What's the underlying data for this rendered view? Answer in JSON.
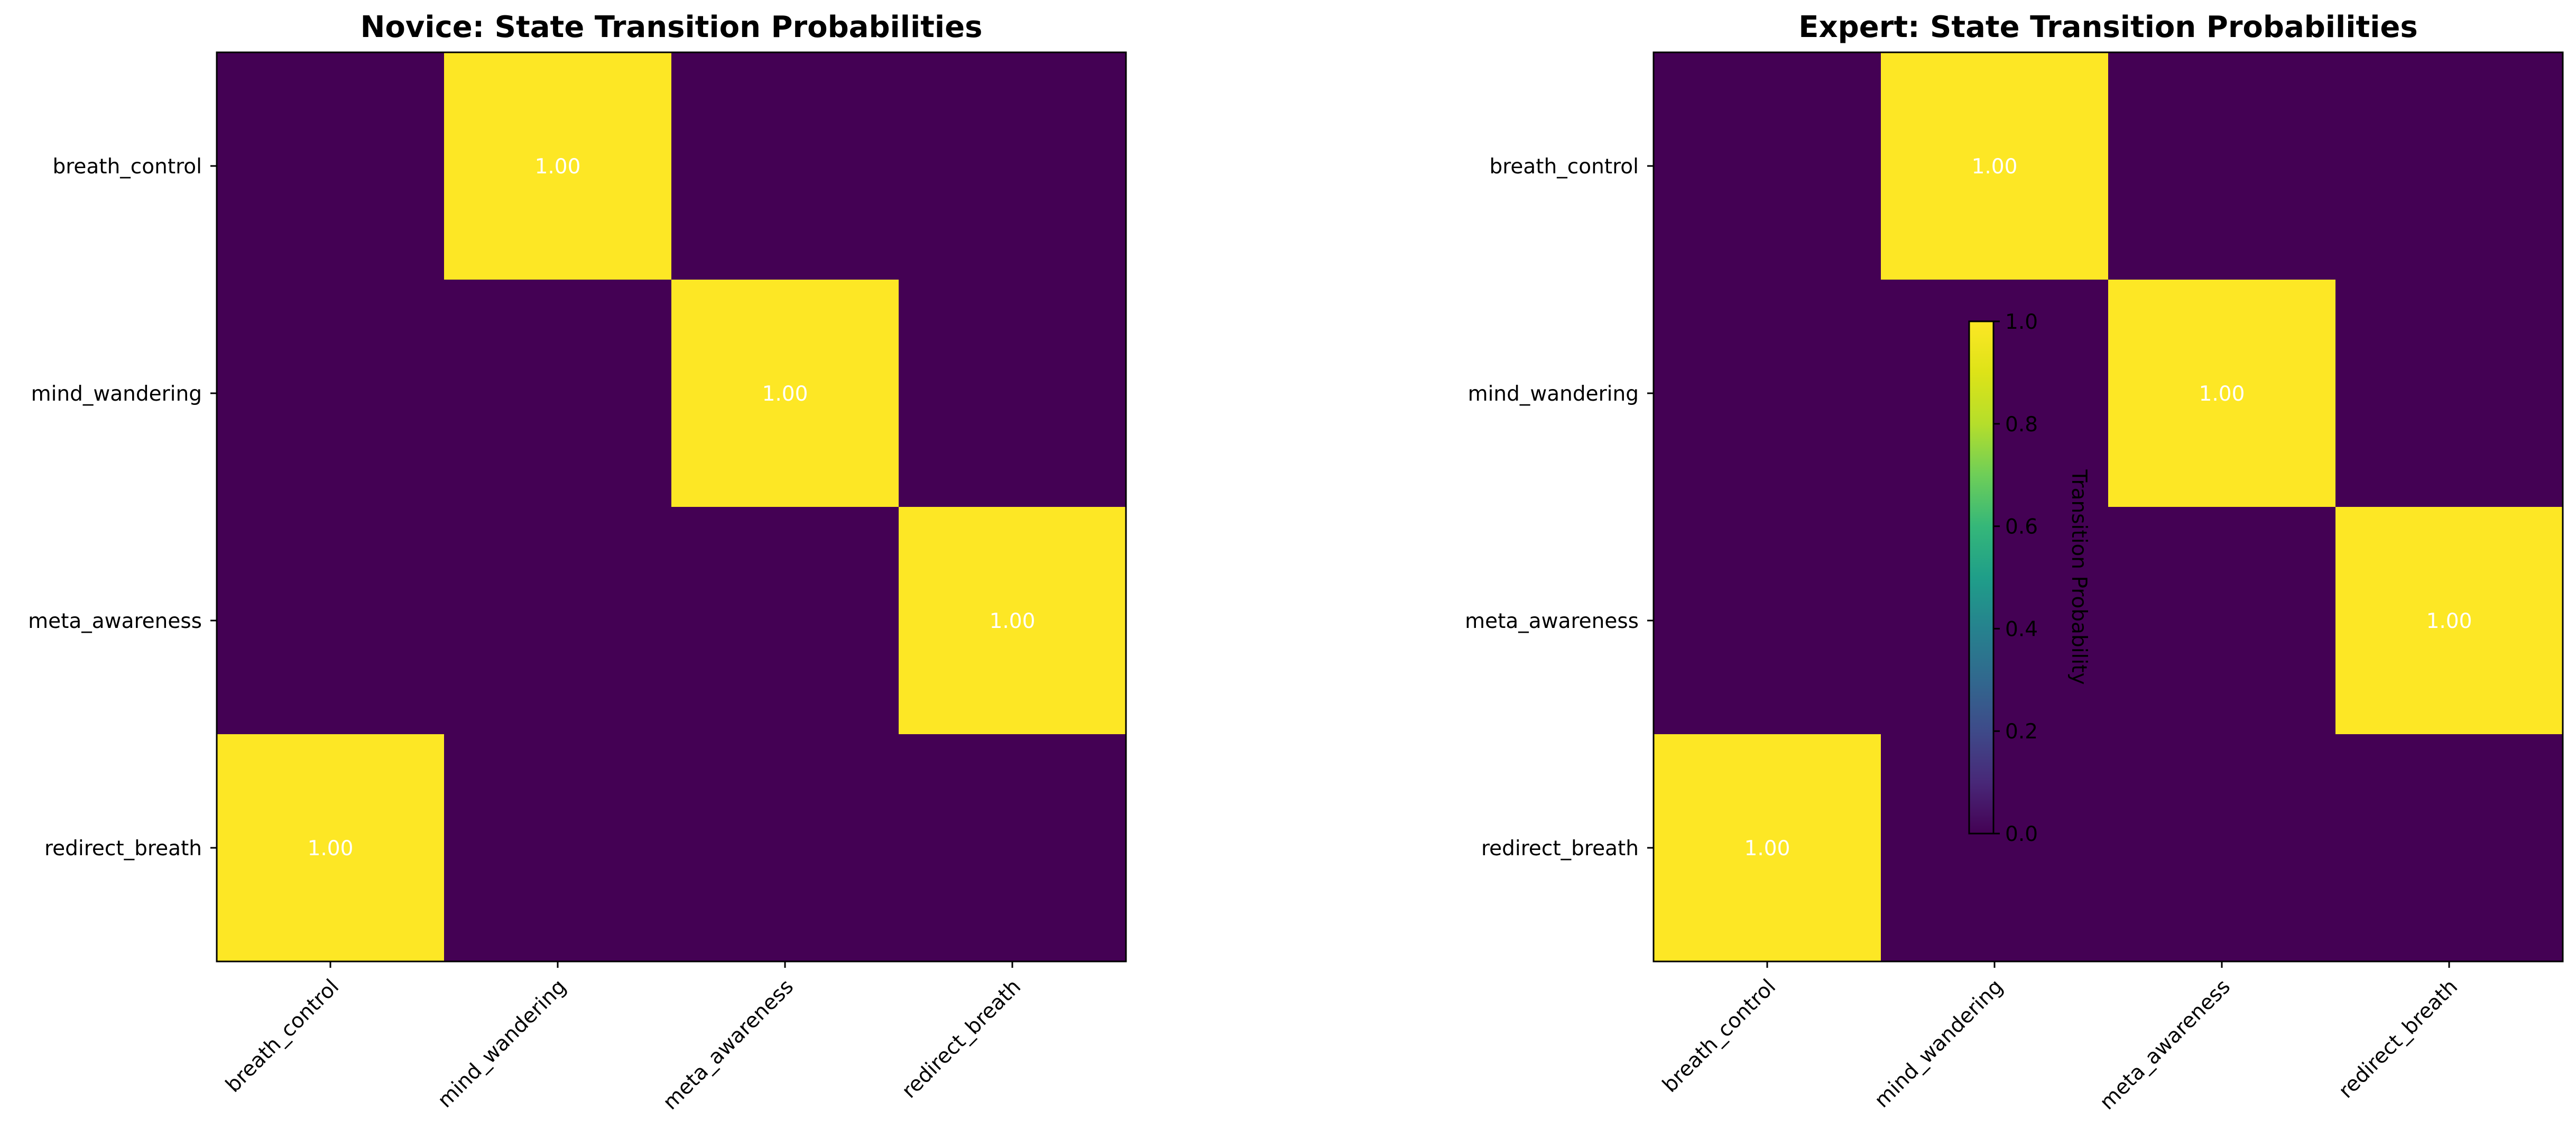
{
  "chart_data": [
    {
      "type": "heatmap",
      "title": "Novice: State Transition Probabilities",
      "rows": [
        "breath_control",
        "mind_wandering",
        "meta_awareness",
        "redirect_breath"
      ],
      "columns": [
        "breath_control",
        "mind_wandering",
        "meta_awareness",
        "redirect_breath"
      ],
      "values": [
        [
          0,
          1,
          0,
          0
        ],
        [
          0,
          0,
          1,
          0
        ],
        [
          0,
          0,
          0,
          1
        ],
        [
          1,
          0,
          0,
          0
        ]
      ],
      "cell_labels": [
        [
          "",
          "1.00",
          "",
          ""
        ],
        [
          "",
          "",
          "1.00",
          ""
        ],
        [
          "",
          "",
          "",
          "1.00"
        ],
        [
          "1.00",
          "",
          "",
          ""
        ]
      ],
      "colormap": "viridis",
      "vmin": 0,
      "vmax": 1
    },
    {
      "type": "heatmap",
      "title": "Expert: State Transition Probabilities",
      "rows": [
        "breath_control",
        "mind_wandering",
        "meta_awareness",
        "redirect_breath"
      ],
      "columns": [
        "breath_control",
        "mind_wandering",
        "meta_awareness",
        "redirect_breath"
      ],
      "values": [
        [
          0,
          1,
          0,
          0
        ],
        [
          0,
          0,
          1,
          0
        ],
        [
          0,
          0,
          0,
          1
        ],
        [
          1,
          0,
          0,
          0
        ]
      ],
      "cell_labels": [
        [
          "",
          "1.00",
          "",
          ""
        ],
        [
          "",
          "",
          "1.00",
          ""
        ],
        [
          "",
          "",
          "",
          "1.00"
        ],
        [
          "1.00",
          "",
          "",
          ""
        ]
      ],
      "colormap": "viridis",
      "vmin": 0,
      "vmax": 1
    }
  ],
  "colorbar": {
    "label": "Transition Probability",
    "ticks": [
      "0.0",
      "0.2",
      "0.4",
      "0.6",
      "0.8",
      "1.0"
    ],
    "tick_values": [
      0,
      0.2,
      0.4,
      0.6,
      0.8,
      1.0
    ],
    "range": [
      0,
      1
    ]
  },
  "colors": {
    "low": "#440154",
    "high": "#fde725",
    "cell_text": "#ffffff"
  }
}
